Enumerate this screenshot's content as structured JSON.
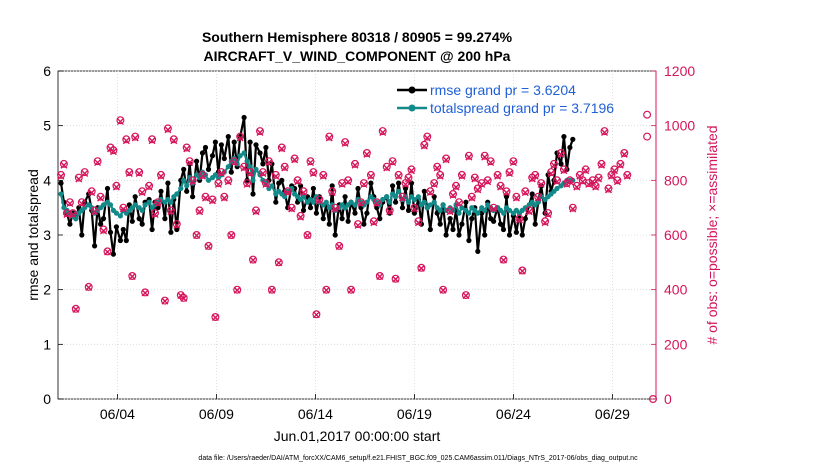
{
  "chart_data": {
    "type": "line",
    "title": "Southern Hemisphere 80318 / 80905 = 99.274%",
    "subtitle": "AIRCRAFT_V_WIND_COMPONENT @ 200 hPa",
    "xlabel": "Jun.01,2017 00:00:00 start",
    "ylabel_left": "rmse and totalspread",
    "ylabel_right": "# of obs: o=possible; ×=assimilated",
    "footnote": "data file: /Users/raeder/DAI/ATM_forcXX/CAM6_setup/f.e21.FHIST_BGC.f09_025.CAM6assim.011/Diags_NTrS_2017-06/obs_diag_output.nc",
    "x_range": [
      1,
      31.2
    ],
    "ylim_left": [
      0,
      6
    ],
    "ylim_right": [
      0,
      1200
    ],
    "x_ticks": [
      {
        "value": 4,
        "label": "06/04"
      },
      {
        "value": 9,
        "label": "06/09"
      },
      {
        "value": 14,
        "label": "06/14"
      },
      {
        "value": 19,
        "label": "06/19"
      },
      {
        "value": 24,
        "label": "06/24"
      },
      {
        "value": 29,
        "label": "06/29"
      }
    ],
    "y_ticks_left": [
      "0",
      "1",
      "2",
      "3",
      "4",
      "5",
      "6"
    ],
    "y_ticks_right": [
      "0",
      "200",
      "400",
      "600",
      "800",
      "1000",
      "1200"
    ],
    "colors": {
      "rmse": "#000000",
      "spread": "#138a8a",
      "obs": "#d5155b",
      "legend_text": "#1f5fd6"
    },
    "series": [
      {
        "name": "rmse grand pr = 3.6204",
        "axis": "left",
        "color": "#000000",
        "values": [
          3.95,
          3.6,
          3.4,
          3.2,
          3.4,
          3.3,
          3.5,
          3.0,
          3.6,
          3.75,
          3.45,
          2.8,
          3.5,
          3.2,
          3.3,
          3.85,
          3.05,
          2.65,
          3.15,
          2.9,
          3.1,
          2.9,
          3.55,
          3.25,
          3.7,
          3.3,
          3.2,
          3.6,
          3.65,
          3.1,
          3.6,
          3.5,
          3.8,
          3.3,
          3.95,
          3.05,
          3.65,
          3.1,
          4.0,
          4.2,
          3.8,
          4.3,
          3.7,
          4.35,
          4.0,
          4.5,
          4.6,
          4.2,
          4.45,
          4.7,
          4.15,
          4.65,
          4.4,
          4.8,
          4.15,
          4.7,
          4.25,
          4.8,
          5.15,
          4.0,
          4.7,
          3.75,
          4.65,
          4.5,
          4.3,
          4.6,
          4.0,
          4.3,
          3.6,
          3.95,
          4.0,
          3.8,
          3.5,
          3.9,
          3.85,
          3.6,
          3.9,
          3.45,
          3.7,
          3.5,
          3.85,
          3.4,
          3.7,
          3.3,
          3.55,
          3.2,
          3.9,
          3.0,
          3.55,
          3.3,
          3.7,
          3.25,
          3.6,
          3.4,
          3.85,
          3.5,
          3.2,
          3.4,
          3.95,
          3.7,
          3.5,
          3.3,
          3.6,
          3.7,
          3.4,
          3.9,
          3.6,
          3.95,
          3.5,
          3.85,
          3.45,
          3.95,
          3.4,
          3.65,
          3.2,
          3.8,
          3.5,
          3.1,
          3.7,
          3.4,
          3.2,
          3.55,
          3.0,
          3.3,
          3.1,
          3.45,
          3.0,
          3.2,
          3.6,
          2.9,
          3.3,
          3.5,
          2.7,
          3.4,
          3.0,
          3.6,
          3.3,
          3.25,
          3.5,
          3.2,
          3.1,
          3.7,
          3.0,
          3.35,
          3.05,
          3.4,
          3.0,
          3.3,
          3.55,
          3.75,
          3.2,
          3.6,
          3.9,
          3.4,
          4.1,
          3.8,
          4.0,
          4.5,
          4.3,
          4.8,
          4.2,
          4.6,
          4.75
        ]
      },
      {
        "name": "totalspread grand pr = 3.7196",
        "axis": "left",
        "color": "#138a8a",
        "values": [
          3.75,
          3.5,
          3.45,
          3.4,
          3.35,
          3.3,
          3.4,
          3.45,
          3.5,
          3.55,
          3.5,
          3.4,
          3.45,
          3.5,
          3.55,
          3.6,
          3.55,
          3.45,
          3.4,
          3.35,
          3.45,
          3.4,
          3.45,
          3.5,
          3.55,
          3.5,
          3.45,
          3.55,
          3.6,
          3.5,
          3.55,
          3.6,
          3.65,
          3.6,
          3.65,
          3.6,
          3.7,
          3.75,
          3.85,
          4.0,
          3.9,
          4.05,
          3.95,
          4.1,
          4.05,
          4.15,
          4.1,
          4.0,
          4.05,
          4.1,
          4.05,
          4.1,
          4.15,
          4.25,
          4.35,
          4.4,
          4.3,
          4.45,
          4.5,
          4.35,
          4.25,
          4.0,
          4.2,
          4.1,
          4.0,
          3.95,
          3.85,
          3.9,
          3.75,
          3.8,
          3.75,
          3.7,
          3.8,
          3.85,
          3.75,
          3.7,
          3.65,
          3.7,
          3.6,
          3.65,
          3.6,
          3.7,
          3.6,
          3.55,
          3.6,
          3.5,
          3.55,
          3.45,
          3.5,
          3.55,
          3.5,
          3.55,
          3.6,
          3.55,
          3.65,
          3.6,
          3.55,
          3.6,
          3.7,
          3.65,
          3.6,
          3.55,
          3.65,
          3.7,
          3.6,
          3.75,
          3.7,
          3.8,
          3.65,
          3.7,
          3.6,
          3.7,
          3.65,
          3.7,
          3.55,
          3.6,
          3.5,
          3.55,
          3.6,
          3.5,
          3.45,
          3.55,
          3.45,
          3.5,
          3.45,
          3.55,
          3.4,
          3.5,
          3.45,
          3.4,
          3.5,
          3.45,
          3.4,
          3.5,
          3.45,
          3.55,
          3.5,
          3.45,
          3.5,
          3.45,
          3.4,
          3.5,
          3.45,
          3.4,
          3.45,
          3.4,
          3.45,
          3.5,
          3.55,
          3.6,
          3.55,
          3.6,
          3.7,
          3.65,
          3.7,
          3.75,
          3.8,
          3.85,
          3.9,
          3.95,
          4.0,
          4.0,
          4.0
        ]
      },
      {
        "name": "obs_possible",
        "axis": "right",
        "color": "#d5155b",
        "values": [
          820,
          860,
          680,
          720,
          680,
          330,
          810,
          720,
          830,
          410,
          760,
          690,
          870,
          740,
          620,
          540,
          920,
          910,
          780,
          1020,
          700,
          950,
          830,
          450,
          960,
          830,
          760,
          390,
          780,
          950,
          680,
          720,
          820,
          360,
          990,
          690,
          950,
          640,
          380,
          370,
          920,
          870,
          800,
          600,
          690,
          820,
          740,
          560,
          730,
          300,
          790,
          830,
          740,
          800,
          600,
          870,
          400,
          960,
          850,
          790,
          830,
          510,
          690,
          980,
          830,
          790,
          870,
          400,
          820,
          500,
          920,
          850,
          760,
          700,
          880,
          800,
          670,
          760,
          600,
          870,
          830,
          310,
          730,
          820,
          400,
          960,
          760,
          700,
          560,
          790,
          940,
          800,
          400,
          860,
          640,
          720,
          790,
          900,
          820,
          650,
          720,
          450,
          980,
          850,
          690,
          870,
          440,
          820,
          740,
          790,
          810,
          840,
          700,
          650,
          480,
          930,
          960,
          760,
          790,
          850,
          820,
          400,
          880,
          690,
          750,
          780,
          720,
          820,
          380,
          890,
          740,
          810,
          770,
          790,
          890,
          800,
          870,
          700,
          820,
          780,
          510,
          760,
          830,
          870,
          740,
          660,
          470,
          760,
          690,
          810,
          820,
          740,
          790,
          650,
          680,
          830,
          860,
          800,
          900,
          840,
          790,
          800,
          700,
          780,
          820,
          800,
          840,
          790,
          800,
          780,
          810,
          860,
          980,
          770,
          820,
          840,
          800,
          860,
          900,
          820
        ]
      },
      {
        "name": "obs_assimilated",
        "axis": "right",
        "color": "#d5155b",
        "values": [
          815,
          855,
          675,
          715,
          675,
          328,
          805,
          715,
          825,
          408,
          755,
          685,
          865,
          735,
          615,
          538,
          915,
          905,
          775,
          1015,
          695,
          945,
          825,
          448,
          955,
          825,
          755,
          388,
          775,
          945,
          675,
          715,
          815,
          358,
          985,
          685,
          945,
          635,
          378,
          368,
          915,
          865,
          795,
          598,
          685,
          815,
          735,
          558,
          725,
          298,
          785,
          825,
          735,
          795,
          598,
          865,
          398,
          955,
          845,
          785,
          825,
          508,
          685,
          975,
          825,
          785,
          865,
          398,
          815,
          498,
          915,
          845,
          755,
          695,
          875,
          795,
          665,
          755,
          598,
          865,
          825,
          308,
          725,
          815,
          398,
          955,
          755,
          695,
          558,
          785,
          935,
          795,
          398,
          855,
          635,
          715,
          785,
          895,
          815,
          645,
          715,
          448,
          975,
          845,
          685,
          865,
          438,
          815,
          735,
          785,
          805,
          835,
          695,
          645,
          478,
          925,
          955,
          755,
          785,
          845,
          815,
          398,
          875,
          685,
          745,
          775,
          715,
          815,
          378,
          885,
          735,
          805,
          765,
          785,
          885,
          795,
          865,
          695,
          815,
          775,
          508,
          755,
          825,
          865,
          735,
          655,
          468,
          755,
          685,
          805,
          815,
          735,
          785,
          645,
          675,
          825,
          855,
          795,
          895,
          835,
          785,
          795,
          695,
          775,
          815,
          795,
          835,
          785,
          795,
          775,
          805,
          855,
          975,
          765,
          815,
          835,
          795,
          855,
          895,
          815
        ]
      }
    ],
    "obs_scatter": {
      "x": [
        1.15,
        1.3,
        1.45,
        1.6,
        1.75,
        1.9,
        2.05,
        2.2,
        2.35,
        2.55,
        2.7,
        2.85,
        3.0,
        3.15,
        3.3,
        3.5,
        3.65,
        3.8,
        3.95,
        4.15,
        4.3,
        4.45,
        4.6,
        4.75,
        4.9,
        5.1,
        5.25,
        5.4,
        5.6,
        5.75,
        5.9,
        6.05,
        6.2,
        6.4,
        6.55,
        6.7,
        6.85,
        7.0,
        7.2,
        7.35,
        7.5,
        7.65,
        7.8,
        8.0,
        8.15,
        8.3,
        8.45,
        8.6,
        8.8,
        8.95,
        9.1,
        9.25,
        9.4,
        9.6,
        9.75,
        9.9,
        10.05,
        10.2,
        10.4,
        10.55,
        10.7,
        10.85,
        11.0,
        11.2,
        11.35,
        11.5,
        11.65,
        11.8,
        12.0,
        12.15,
        12.3,
        12.45,
        12.6,
        12.8,
        12.95,
        13.1,
        13.25,
        13.4,
        13.6,
        13.75,
        13.9,
        14.05,
        14.2,
        14.4,
        14.55,
        14.7,
        14.85,
        15.0,
        15.2,
        15.35,
        15.5,
        15.65,
        15.8,
        16.0,
        16.15,
        16.3,
        16.45,
        16.6,
        16.8,
        16.95,
        17.1,
        17.25,
        17.4,
        17.6,
        17.75,
        17.9,
        18.05,
        18.2,
        18.4,
        18.55,
        18.7,
        18.85,
        19.0,
        19.2,
        19.35,
        19.5,
        19.65,
        19.8,
        20.0,
        20.15,
        20.3,
        20.45,
        20.6,
        20.8,
        20.95,
        21.1,
        21.25,
        21.4,
        21.6,
        21.75,
        21.9,
        22.05,
        22.2,
        22.4,
        22.55,
        22.7,
        22.85,
        23.0,
        23.2,
        23.35,
        23.5,
        23.65,
        23.8,
        24.0,
        24.15,
        24.3,
        24.45,
        24.6,
        24.8,
        24.95,
        25.1,
        25.25,
        25.4,
        25.6,
        25.75,
        25.9,
        26.05,
        26.2,
        26.4,
        26.55,
        26.7,
        26.85,
        27.0,
        27.2,
        27.35,
        27.5,
        27.65,
        27.8,
        28.0,
        28.15,
        28.3,
        28.45,
        28.6,
        28.8,
        28.95,
        29.1,
        29.25,
        29.4,
        29.6,
        29.75,
        29.9,
        30.05,
        30.2,
        30.4,
        30.55,
        30.7,
        30.85,
        31.0
      ],
      "note": "extra end markers: obs 1040 and 0 at last day"
    }
  }
}
